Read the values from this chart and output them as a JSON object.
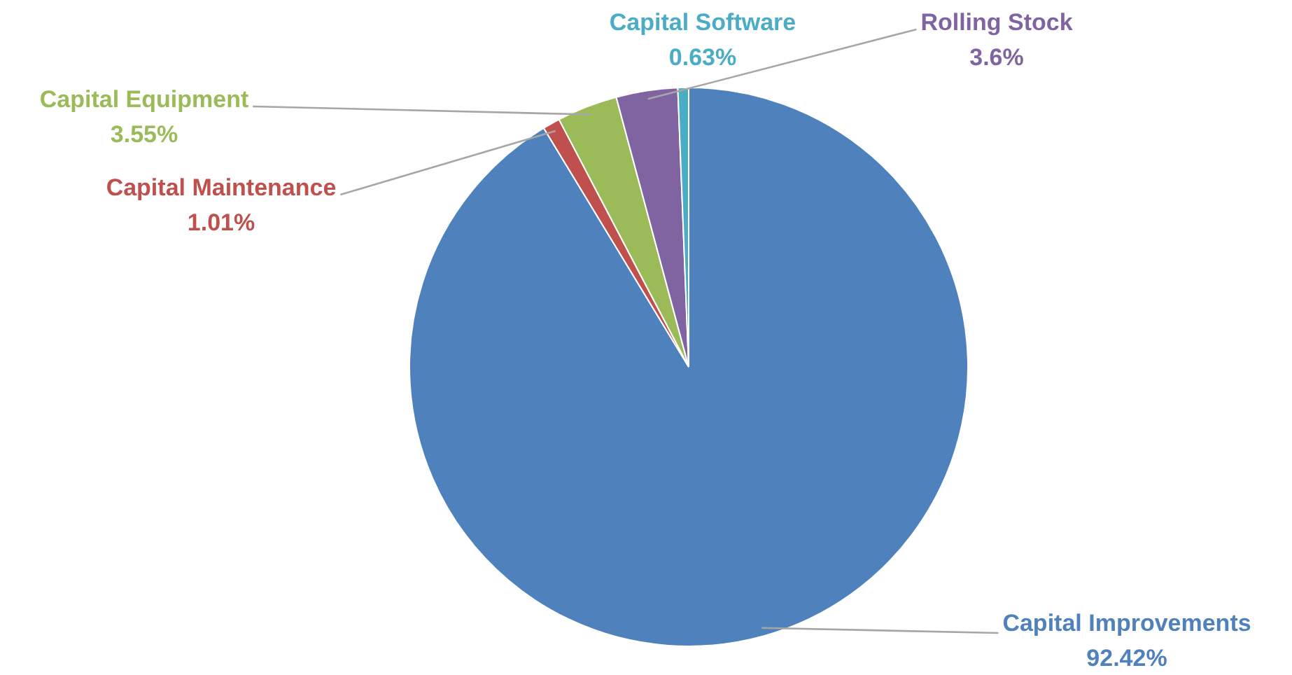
{
  "chart_data": {
    "type": "pie",
    "categories": [
      "Capital Improvements",
      "Capital Maintenance",
      "Capital Equipment",
      "Rolling Stock",
      "Capital Software"
    ],
    "values": [
      92.42,
      1.01,
      3.55,
      3.6,
      0.63
    ],
    "colors": [
      "#4f81bd",
      "#c0504d",
      "#9bbb59",
      "#8064a2",
      "#4bacc6"
    ],
    "value_labels": [
      "92.42%",
      "1.01%",
      "3.55%",
      "3.6%",
      "0.63%"
    ],
    "legend": false
  }
}
